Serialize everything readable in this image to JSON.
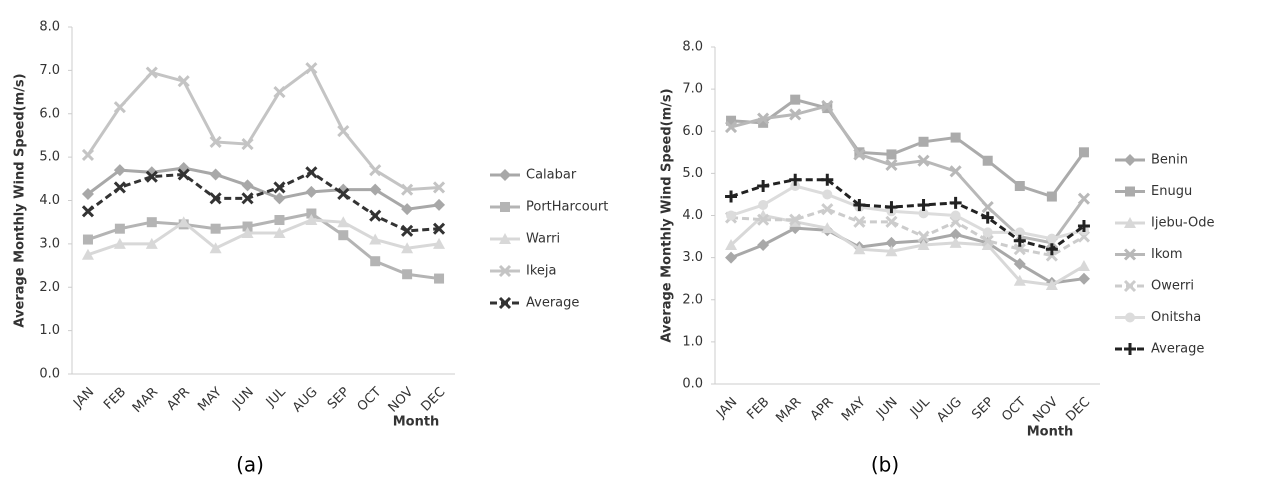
{
  "chart_data": [
    {
      "type": "line",
      "caption": "(a)",
      "y_label": "Average Monthly Wind Speed(m/s)",
      "x_label": "Month",
      "categories": [
        "JAN",
        "FEB",
        "MAR",
        "APR",
        "MAY",
        "JUN",
        "JUL",
        "AUG",
        "SEP",
        "OCT",
        "NOV",
        "DEC"
      ],
      "ylim": [
        0,
        8
      ],
      "yticks": [
        {
          "value": 0,
          "label": "0.0"
        },
        {
          "value": 1,
          "label": "1.0"
        },
        {
          "value": 2,
          "label": "2.0"
        },
        {
          "value": 3,
          "label": "3.0"
        },
        {
          "value": 4,
          "label": "4.0"
        },
        {
          "value": 5,
          "label": "5.0"
        },
        {
          "value": 6,
          "label": "6.0"
        },
        {
          "value": 7,
          "label": "7.0"
        },
        {
          "value": 8,
          "label": "8.0"
        }
      ],
      "grid": false,
      "series": [
        {
          "name": "Calabar",
          "color": "#a8a8a8",
          "marker": "diamond",
          "dash": false,
          "values": [
            4.15,
            4.7,
            4.65,
            4.75,
            4.6,
            4.35,
            4.05,
            4.2,
            4.25,
            4.25,
            3.8,
            3.9
          ]
        },
        {
          "name": "PortHarcourt",
          "color": "#b4b4b4",
          "marker": "square",
          "dash": false,
          "values": [
            3.1,
            3.35,
            3.5,
            3.45,
            3.35,
            3.4,
            3.55,
            3.7,
            3.2,
            2.6,
            2.3,
            2.2
          ]
        },
        {
          "name": "Warri",
          "color": "#d8d8d8",
          "marker": "triangle",
          "dash": false,
          "values": [
            2.75,
            3.0,
            3.0,
            3.5,
            2.9,
            3.25,
            3.25,
            3.55,
            3.5,
            3.1,
            2.9,
            3.0
          ]
        },
        {
          "name": "Ikeja",
          "color": "#c4c4c4",
          "marker": "x",
          "dash": false,
          "values": [
            5.05,
            6.15,
            6.95,
            6.75,
            5.35,
            5.3,
            6.5,
            7.05,
            5.6,
            4.7,
            4.25,
            4.3
          ]
        },
        {
          "name": "Average",
          "color": "#333333",
          "marker": "x",
          "dash": true,
          "values": [
            3.75,
            4.3,
            4.55,
            4.6,
            4.05,
            4.05,
            4.3,
            4.65,
            4.15,
            3.65,
            3.3,
            3.35
          ]
        }
      ]
    },
    {
      "type": "line",
      "caption": "(b)",
      "y_label": "Average Monthly Wind Speed(m/s)",
      "x_label": "Month",
      "categories": [
        "JAN",
        "FEB",
        "MAR",
        "APR",
        "MAY",
        "JUN",
        "JUL",
        "AUG",
        "SEP",
        "OCT",
        "NOV",
        "DEC"
      ],
      "ylim": [
        0,
        8
      ],
      "yticks": [
        {
          "value": 0,
          "label": "0.0"
        },
        {
          "value": 1,
          "label": "1.0"
        },
        {
          "value": 2,
          "label": "2.0"
        },
        {
          "value": 3,
          "label": "3.0"
        },
        {
          "value": 4,
          "label": "4.0"
        },
        {
          "value": 5,
          "label": "5.0"
        },
        {
          "value": 6,
          "label": "6.0"
        },
        {
          "value": 7,
          "label": "7.0"
        },
        {
          "value": 8,
          "label": "8.0"
        }
      ],
      "grid": false,
      "series": [
        {
          "name": "Benin",
          "color": "#a8a8a8",
          "marker": "diamond",
          "dash": false,
          "values": [
            3.0,
            3.3,
            3.7,
            3.65,
            3.25,
            3.35,
            3.4,
            3.55,
            3.35,
            2.85,
            2.4,
            2.5
          ]
        },
        {
          "name": "Enugu",
          "color": "#ababab",
          "marker": "square",
          "dash": false,
          "values": [
            6.25,
            6.2,
            6.75,
            6.55,
            5.5,
            5.45,
            5.75,
            5.85,
            5.3,
            4.7,
            4.45,
            5.5
          ]
        },
        {
          "name": "Ijebu-Ode",
          "color": "#d8d8d8",
          "marker": "triangle",
          "dash": false,
          "values": [
            3.3,
            4.0,
            3.85,
            3.7,
            3.2,
            3.15,
            3.3,
            3.35,
            3.3,
            2.45,
            2.35,
            2.8
          ]
        },
        {
          "name": "Ikom",
          "color": "#b8b8b8",
          "marker": "x",
          "dash": false,
          "values": [
            6.1,
            6.3,
            6.4,
            6.6,
            5.45,
            5.2,
            5.3,
            5.05,
            4.2,
            3.5,
            3.35,
            4.4
          ]
        },
        {
          "name": "Owerri",
          "color": "#cccccc",
          "marker": "x",
          "dash": true,
          "values": [
            3.95,
            3.9,
            3.9,
            4.15,
            3.85,
            3.85,
            3.5,
            3.85,
            3.4,
            3.2,
            3.05,
            3.5
          ]
        },
        {
          "name": "Onitsha",
          "color": "#dcdcdc",
          "marker": "circle",
          "dash": false,
          "values": [
            4.0,
            4.25,
            4.7,
            4.5,
            4.2,
            4.1,
            4.05,
            4.0,
            3.6,
            3.6,
            3.45,
            3.65
          ]
        },
        {
          "name": "Average",
          "color": "#222222",
          "marker": "plus",
          "dash": true,
          "values": [
            4.45,
            4.7,
            4.85,
            4.85,
            4.25,
            4.2,
            4.25,
            4.3,
            3.95,
            3.4,
            3.2,
            3.75
          ]
        }
      ]
    }
  ]
}
